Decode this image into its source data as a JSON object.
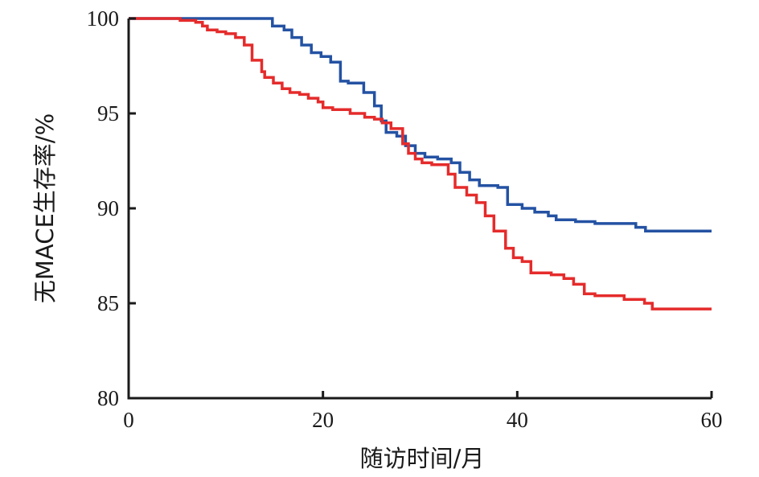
{
  "chart_data": {
    "type": "line",
    "title": "",
    "xlabel": "随访时间/月",
    "ylabel": "无MACE生存率/%",
    "xlim": [
      0,
      60
    ],
    "ylim": [
      80,
      100
    ],
    "xticks": [
      0,
      20,
      40,
      60
    ],
    "yticks": [
      80,
      85,
      90,
      95,
      100
    ],
    "xtick_labels": [
      "0",
      "20",
      "40",
      "60"
    ],
    "ytick_labels": [
      "80",
      "85",
      "90",
      "95",
      "100"
    ],
    "grid": false,
    "legend": "none",
    "step": true,
    "series": [
      {
        "color": "#2452a3",
        "points": [
          [
            0,
            100
          ],
          [
            14.8,
            100
          ],
          [
            14.8,
            99.6
          ],
          [
            16.0,
            99.6
          ],
          [
            16.0,
            99.4
          ],
          [
            16.8,
            99.4
          ],
          [
            16.8,
            99.0
          ],
          [
            17.8,
            99.0
          ],
          [
            17.8,
            98.6
          ],
          [
            18.8,
            98.6
          ],
          [
            18.8,
            98.2
          ],
          [
            19.8,
            98.2
          ],
          [
            19.8,
            98.0
          ],
          [
            20.8,
            98.0
          ],
          [
            20.8,
            97.7
          ],
          [
            21.8,
            97.7
          ],
          [
            21.8,
            96.7
          ],
          [
            22.6,
            96.7
          ],
          [
            22.6,
            96.6
          ],
          [
            24.2,
            96.6
          ],
          [
            24.2,
            96.1
          ],
          [
            25.3,
            96.1
          ],
          [
            25.3,
            95.4
          ],
          [
            26.0,
            95.4
          ],
          [
            26.0,
            94.6
          ],
          [
            26.5,
            94.6
          ],
          [
            26.5,
            94.0
          ],
          [
            27.6,
            94.0
          ],
          [
            27.6,
            93.8
          ],
          [
            28.5,
            93.8
          ],
          [
            28.5,
            93.3
          ],
          [
            29.5,
            93.3
          ],
          [
            29.5,
            92.9
          ],
          [
            30.5,
            92.9
          ],
          [
            30.5,
            92.7
          ],
          [
            31.8,
            92.7
          ],
          [
            31.8,
            92.6
          ],
          [
            33.2,
            92.6
          ],
          [
            33.2,
            92.4
          ],
          [
            34.1,
            92.4
          ],
          [
            34.1,
            91.9
          ],
          [
            35.1,
            91.9
          ],
          [
            35.1,
            91.5
          ],
          [
            36.1,
            91.5
          ],
          [
            36.1,
            91.2
          ],
          [
            38.0,
            91.2
          ],
          [
            38.0,
            91.1
          ],
          [
            39.0,
            91.1
          ],
          [
            39.0,
            90.2
          ],
          [
            40.5,
            90.2
          ],
          [
            40.5,
            90.0
          ],
          [
            41.8,
            90.0
          ],
          [
            41.8,
            89.8
          ],
          [
            43.2,
            89.8
          ],
          [
            43.2,
            89.6
          ],
          [
            44.0,
            89.6
          ],
          [
            44.0,
            89.4
          ],
          [
            46.0,
            89.4
          ],
          [
            46.0,
            89.3
          ],
          [
            48.0,
            89.3
          ],
          [
            48.0,
            89.2
          ],
          [
            52.2,
            89.2
          ],
          [
            52.2,
            89.0
          ],
          [
            53.2,
            89.0
          ],
          [
            53.2,
            88.8
          ],
          [
            60,
            88.8
          ]
        ]
      },
      {
        "color": "#e52b2b",
        "points": [
          [
            0,
            100
          ],
          [
            5.3,
            100
          ],
          [
            5.3,
            99.9
          ],
          [
            6.9,
            99.9
          ],
          [
            6.9,
            99.8
          ],
          [
            7.6,
            99.8
          ],
          [
            7.6,
            99.6
          ],
          [
            8.1,
            99.6
          ],
          [
            8.1,
            99.4
          ],
          [
            9.1,
            99.4
          ],
          [
            9.1,
            99.3
          ],
          [
            10.0,
            99.3
          ],
          [
            10.0,
            99.2
          ],
          [
            11.0,
            99.2
          ],
          [
            11.0,
            99.0
          ],
          [
            11.9,
            99.0
          ],
          [
            11.9,
            98.6
          ],
          [
            12.7,
            98.6
          ],
          [
            12.7,
            97.8
          ],
          [
            13.7,
            97.8
          ],
          [
            13.7,
            97.2
          ],
          [
            14.0,
            97.2
          ],
          [
            14.0,
            96.9
          ],
          [
            14.9,
            96.9
          ],
          [
            14.9,
            96.6
          ],
          [
            15.8,
            96.6
          ],
          [
            15.8,
            96.3
          ],
          [
            16.6,
            96.3
          ],
          [
            16.6,
            96.1
          ],
          [
            17.6,
            96.1
          ],
          [
            17.6,
            96.0
          ],
          [
            18.5,
            96.0
          ],
          [
            18.5,
            95.8
          ],
          [
            19.5,
            95.8
          ],
          [
            19.5,
            95.6
          ],
          [
            20.0,
            95.6
          ],
          [
            20.0,
            95.3
          ],
          [
            21.0,
            95.3
          ],
          [
            21.0,
            95.2
          ],
          [
            22.8,
            95.2
          ],
          [
            22.8,
            95.0
          ],
          [
            24.3,
            95.0
          ],
          [
            24.3,
            94.8
          ],
          [
            25.3,
            94.8
          ],
          [
            25.3,
            94.7
          ],
          [
            26.1,
            94.7
          ],
          [
            26.1,
            94.5
          ],
          [
            27.0,
            94.5
          ],
          [
            27.0,
            94.2
          ],
          [
            28.2,
            94.2
          ],
          [
            28.2,
            93.4
          ],
          [
            28.8,
            93.4
          ],
          [
            28.8,
            92.9
          ],
          [
            29.5,
            92.9
          ],
          [
            29.5,
            92.6
          ],
          [
            30.2,
            92.6
          ],
          [
            30.2,
            92.4
          ],
          [
            31.2,
            92.4
          ],
          [
            31.2,
            92.3
          ],
          [
            32.9,
            92.3
          ],
          [
            32.9,
            91.8
          ],
          [
            33.6,
            91.8
          ],
          [
            33.6,
            91.1
          ],
          [
            34.8,
            91.1
          ],
          [
            34.8,
            90.7
          ],
          [
            35.8,
            90.7
          ],
          [
            35.8,
            90.3
          ],
          [
            36.7,
            90.3
          ],
          [
            36.7,
            89.6
          ],
          [
            37.6,
            89.6
          ],
          [
            37.6,
            88.8
          ],
          [
            38.8,
            88.8
          ],
          [
            38.8,
            87.9
          ],
          [
            39.6,
            87.9
          ],
          [
            39.6,
            87.4
          ],
          [
            40.5,
            87.4
          ],
          [
            40.5,
            87.2
          ],
          [
            41.4,
            87.2
          ],
          [
            41.4,
            86.6
          ],
          [
            43.5,
            86.6
          ],
          [
            43.5,
            86.5
          ],
          [
            44.8,
            86.5
          ],
          [
            44.8,
            86.3
          ],
          [
            45.8,
            86.3
          ],
          [
            45.8,
            86.0
          ],
          [
            46.9,
            86.0
          ],
          [
            46.9,
            85.5
          ],
          [
            48.0,
            85.5
          ],
          [
            48.0,
            85.4
          ],
          [
            51.0,
            85.4
          ],
          [
            51.0,
            85.2
          ],
          [
            53.1,
            85.2
          ],
          [
            53.1,
            85.0
          ],
          [
            53.9,
            85.0
          ],
          [
            53.9,
            84.7
          ],
          [
            60,
            84.7
          ]
        ]
      }
    ]
  }
}
